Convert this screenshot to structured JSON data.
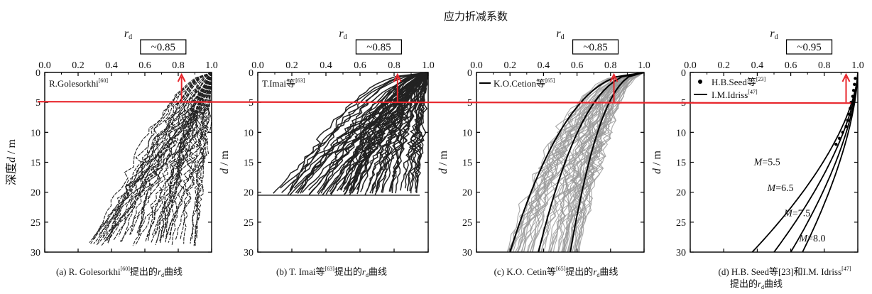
{
  "figure_title": "应力折减系数",
  "threshold_depth_m": 5,
  "colors": {
    "curve_black": "#222222",
    "curve_gray": "#9a9a9a",
    "highlight": "#e8262c"
  },
  "chart_data": [
    {
      "type": "line",
      "panel": "a",
      "xlabel": "r",
      "xlabel_sub": "d",
      "ylabel": "深度 d / m",
      "xlim": [
        0,
        1
      ],
      "ylim": [
        0,
        30
      ],
      "xticks": [
        "0.0",
        "0.2",
        "0.4",
        "0.6",
        "0.8",
        "1.0"
      ],
      "yticks": [
        "0",
        "5",
        "10",
        "15",
        "20",
        "25",
        "30"
      ],
      "annotation": "~0.85",
      "highlight_rd": 0.82,
      "legend": [
        {
          "text": "R.Golesorkhi",
          "sup": "[60]"
        }
      ],
      "caption": {
        "pre": "(a) R. Golesorkhi",
        "sup": "[60]",
        "post": "提出的",
        "var": "r",
        "sub": "d",
        "end": "曲线"
      },
      "description": "Many dashed black r_d profiles; r_d = 1.0 at surface, falling to roughly 0.25–0.95 at 29 m depth",
      "series_envelope": {
        "r_at_bottom_min": 0.25,
        "r_at_bottom_max": 0.95,
        "bottom_depth": 29,
        "count": 55
      }
    },
    {
      "type": "line",
      "panel": "b",
      "xlabel": "r",
      "xlabel_sub": "d",
      "ylabel": "d / m",
      "xlim": [
        0,
        1
      ],
      "ylim": [
        0,
        30
      ],
      "xticks": [
        "0.0",
        "0.2",
        "0.4",
        "0.6",
        "0.8",
        "1.0"
      ],
      "yticks": [
        "0",
        "5",
        "10",
        "15",
        "20",
        "25",
        "30"
      ],
      "annotation": "~0.85",
      "highlight_rd": 0.82,
      "legend": [
        {
          "text": "T.Imai等",
          "sup": "[63]"
        }
      ],
      "caption": {
        "pre": "(b) T. Imai等",
        "sup": "[63]",
        "post": "提出的",
        "var": "r",
        "sub": "d",
        "end": "曲线"
      },
      "description": "Dense set of dark r_d profiles ending at about 20.5 m depth with r_d roughly 0.0–0.95",
      "series_envelope": {
        "r_at_bottom_min": 0.0,
        "r_at_bottom_max": 0.95,
        "bottom_depth": 20.5,
        "count": 70
      }
    },
    {
      "type": "line",
      "panel": "c",
      "xlabel": "r",
      "xlabel_sub": "d",
      "ylabel": "d / m",
      "xlim": [
        0,
        1
      ],
      "ylim": [
        0,
        30
      ],
      "xticks": [
        "0.0",
        "0.2",
        "0.4",
        "0.6",
        "0.8",
        "1.0"
      ],
      "yticks": [
        "0",
        "5",
        "10",
        "15",
        "20",
        "25",
        "30"
      ],
      "annotation": "~0.85",
      "highlight_rd": 0.82,
      "legend": [
        {
          "text": "K.O.Cetion等",
          "sup": "[65]"
        }
      ],
      "caption": {
        "pre": "(c) K.O. Cetin等",
        "sup": "[65]",
        "post": "提出的",
        "var": "r",
        "sub": "d",
        "end": "曲线"
      },
      "description": "Many gray r_d profiles from 0 to 30 m with three black reference curves ending at r_d ≈ 0.20, 0.37 and 0.56",
      "series_envelope": {
        "r_at_bottom_min": 0.18,
        "r_at_bottom_max": 0.62,
        "bottom_depth": 30,
        "count": 60
      },
      "reference_curves_bottom_r": [
        0.2,
        0.37,
        0.56
      ]
    },
    {
      "type": "line",
      "panel": "d",
      "xlabel": "r",
      "xlabel_sub": "d",
      "ylabel": "d / m",
      "xlim": [
        0,
        1
      ],
      "ylim": [
        0,
        30
      ],
      "xticks": [
        "0.0",
        "0.2",
        "0.4",
        "0.6",
        "0.8",
        "1.0"
      ],
      "yticks": [
        "0",
        "5",
        "10",
        "15",
        "20",
        "25",
        "30"
      ],
      "annotation": "~0.95",
      "highlight_rd": 0.93,
      "legend": [
        {
          "text": "H.B.Seed等",
          "sup": "[23]",
          "marker": "dot"
        },
        {
          "text": "I.M.Idriss",
          "sup": "[47]",
          "marker": "line"
        }
      ],
      "series": [
        {
          "name": "M=5.5",
          "label_var": "M",
          "label_val": "=5.5",
          "bottom_r": 0.37
        },
        {
          "name": "M=6.5",
          "label_var": "M",
          "label_val": "=6.5",
          "bottom_r": 0.5
        },
        {
          "name": "M=7.5",
          "label_var": "M",
          "label_val": "=7.5",
          "bottom_r": 0.6
        },
        {
          "name": "M=8.0",
          "label_var": "M",
          "label_val": "=8.0",
          "bottom_r": 0.67
        }
      ],
      "seed_points": [
        [
          0.985,
          1
        ],
        [
          0.98,
          2
        ],
        [
          0.975,
          3
        ],
        [
          0.97,
          4
        ],
        [
          0.96,
          5
        ],
        [
          0.955,
          6
        ],
        [
          0.95,
          7
        ],
        [
          0.94,
          8
        ],
        [
          0.93,
          9
        ],
        [
          0.91,
          10
        ],
        [
          0.89,
          11
        ],
        [
          0.87,
          12
        ]
      ],
      "caption": {
        "pre": "(d) H.B. Seed等[23]和I.M. Idriss",
        "sup": "[47]",
        "post": "",
        "var": "",
        "sub": "",
        "end": "",
        "line2_pre": "提出的",
        "line2_var": "r",
        "line2_sub": "d",
        "line2_end": "曲线"
      }
    }
  ]
}
